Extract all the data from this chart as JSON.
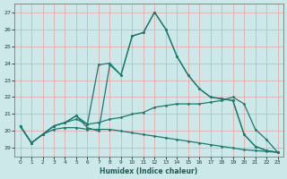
{
  "xlabel": "Humidex (Indice chaleur)",
  "bg_color": "#cce8e8",
  "grid_color": "#e8a0a0",
  "line_color": "#1a7a6e",
  "xlim": [
    -0.5,
    23.5
  ],
  "ylim": [
    18.5,
    27.5
  ],
  "yticks": [
    19,
    20,
    21,
    22,
    23,
    24,
    25,
    26,
    27
  ],
  "xticks": [
    0,
    1,
    2,
    3,
    4,
    5,
    6,
    7,
    8,
    9,
    10,
    11,
    12,
    13,
    14,
    15,
    16,
    17,
    18,
    19,
    20,
    21,
    22,
    23
  ],
  "line1_x": [
    0,
    1,
    2,
    3,
    4,
    5,
    6,
    7,
    8,
    9,
    10,
    11,
    12,
    13,
    14,
    15,
    16,
    17,
    18,
    19,
    20,
    21,
    22,
    23
  ],
  "line1_y": [
    20.3,
    19.3,
    19.8,
    20.3,
    20.5,
    20.9,
    20.2,
    20.0,
    23.9,
    23.3,
    25.6,
    25.8,
    27.0,
    26.0,
    24.4,
    23.3,
    22.5,
    22.0,
    21.9,
    21.8,
    19.8,
    19.1,
    18.85,
    18.75
  ],
  "line2_x": [
    0,
    1,
    2,
    3,
    4,
    5,
    6,
    7,
    8,
    9,
    10,
    11,
    12,
    13,
    14,
    15,
    16,
    17,
    18,
    19,
    20,
    21,
    22,
    23
  ],
  "line2_y": [
    20.3,
    19.3,
    19.8,
    20.3,
    20.5,
    20.9,
    20.4,
    23.9,
    24.0,
    23.3,
    25.6,
    25.8,
    27.0,
    26.0,
    24.4,
    23.3,
    22.5,
    22.0,
    21.9,
    21.8,
    19.8,
    19.1,
    18.85,
    18.75
  ],
  "line3_x": [
    0,
    1,
    2,
    3,
    4,
    5,
    6,
    7,
    8,
    9,
    10,
    11,
    12,
    13,
    14,
    15,
    16,
    17,
    18,
    19,
    20,
    21,
    22,
    23
  ],
  "line3_y": [
    20.3,
    19.3,
    19.8,
    20.3,
    20.5,
    20.7,
    20.4,
    20.5,
    20.7,
    20.8,
    21.0,
    21.1,
    21.4,
    21.5,
    21.6,
    21.6,
    21.6,
    21.7,
    21.8,
    22.0,
    21.6,
    20.1,
    19.5,
    18.75
  ],
  "line4_x": [
    0,
    1,
    2,
    3,
    4,
    5,
    6,
    7,
    8,
    9,
    10,
    11,
    12,
    13,
    14,
    15,
    16,
    17,
    18,
    19,
    20,
    21,
    22,
    23
  ],
  "line4_y": [
    20.3,
    19.3,
    19.8,
    20.1,
    20.2,
    20.2,
    20.1,
    20.1,
    20.1,
    20.0,
    19.9,
    19.8,
    19.7,
    19.6,
    19.5,
    19.4,
    19.3,
    19.2,
    19.1,
    19.0,
    18.9,
    18.85,
    18.8,
    18.75
  ]
}
